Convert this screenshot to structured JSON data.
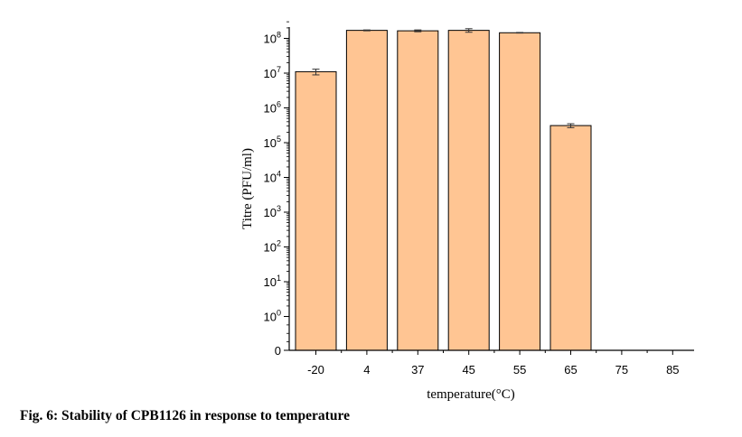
{
  "caption": "Fig. 6: Stability of CPB1126 in response to temperature",
  "chart_data": {
    "type": "bar",
    "xlabel": "temperature(°C)",
    "ylabel": "Titre (PFU/ml)",
    "yscale": "log",
    "categories": [
      "-20",
      "4",
      "37",
      "45",
      "55",
      "65",
      "75",
      "85"
    ],
    "values": [
      11000000,
      170000000,
      165000000,
      170000000,
      145000000,
      310000,
      0,
      0
    ],
    "error_low": [
      8900000,
      165000000,
      155000000,
      150000000,
      142000000,
      270000,
      0,
      0
    ],
    "error_high": [
      13000000,
      175000000,
      175000000,
      190000000,
      148000000,
      350000,
      0,
      0
    ],
    "yticks": [
      {
        "base": "0",
        "exp": ""
      },
      {
        "base": "10",
        "exp": "0"
      },
      {
        "base": "10",
        "exp": "1"
      },
      {
        "base": "10",
        "exp": "2"
      },
      {
        "base": "10",
        "exp": "3"
      },
      {
        "base": "10",
        "exp": "4"
      },
      {
        "base": "10",
        "exp": "5"
      },
      {
        "base": "10",
        "exp": "6"
      },
      {
        "base": "10",
        "exp": "7"
      },
      {
        "base": "10",
        "exp": "8"
      }
    ],
    "bar_color": "#FFC593",
    "bar_edge_color": "#000000",
    "grid": false,
    "legend": "none"
  }
}
